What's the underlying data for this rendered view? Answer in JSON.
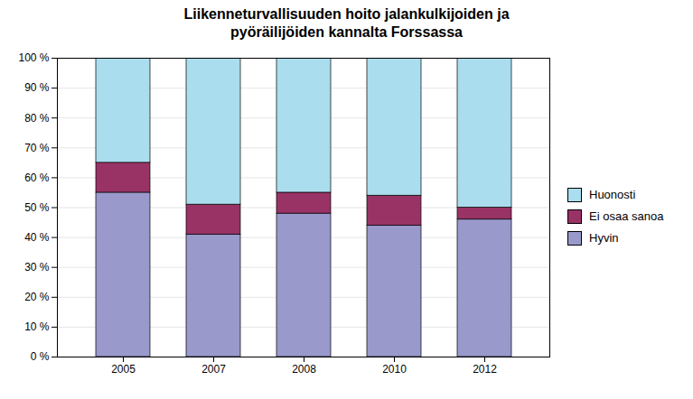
{
  "chart_data": {
    "type": "bar",
    "title": "Liikenneturvallisuuden hoito jalankulkijoiden ja\npyöräilijöiden kannalta Forssassa",
    "categories": [
      "2005",
      "2007",
      "2008",
      "2010",
      "2012"
    ],
    "series": [
      {
        "name": "Hyvin",
        "color": "#9999cc",
        "values": [
          55,
          41,
          48,
          44,
          46
        ]
      },
      {
        "name": "Ei osaa sanoa",
        "color": "#993366",
        "values": [
          10,
          10,
          7,
          10,
          4
        ]
      },
      {
        "name": "Huonosti",
        "color": "#aaddee",
        "values": [
          35,
          49,
          45,
          46,
          50
        ]
      }
    ],
    "stacked": true,
    "ylim": [
      0,
      100
    ],
    "yticks": [
      {
        "value": 0,
        "label": "0 %"
      },
      {
        "value": 10,
        "label": "10 %"
      },
      {
        "value": 20,
        "label": "20 %"
      },
      {
        "value": 30,
        "label": "30 %"
      },
      {
        "value": 40,
        "label": "40 %"
      },
      {
        "value": 50,
        "label": "50 %"
      },
      {
        "value": 60,
        "label": "60 %"
      },
      {
        "value": 70,
        "label": "70 %"
      },
      {
        "value": 80,
        "label": "80 %"
      },
      {
        "value": 90,
        "label": "90 %"
      },
      {
        "value": 100,
        "label": "100 %"
      }
    ],
    "grid": true,
    "legend": "right"
  }
}
